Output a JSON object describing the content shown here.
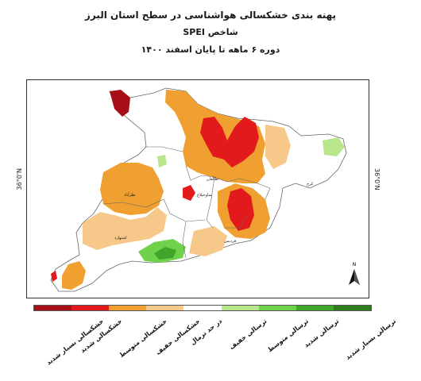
{
  "title": {
    "line1": "پهنه بندی خشکسالی هواشناسی در سطح استان البرز",
    "line2": "شاخص SPEI",
    "line3": "دوره ۶ ماهه تا پایان اسفند ۱۴۰۰"
  },
  "latitude_label": "36°0'N",
  "north_arrow": "N",
  "map_labels": {
    "city1": "طالقان",
    "city2": "ساوجبلاغ",
    "city3": "کرج",
    "city4": "نظرآباد",
    "city5": "اشتهارد",
    "city6": "فردیس"
  },
  "legend": [
    {
      "label": "خشکسالی بسیار شدید",
      "color": "#a50f15"
    },
    {
      "label": "خشکسالی شدید",
      "color": "#e31a1c"
    },
    {
      "label": "خشکسالی متوسط",
      "color": "#f0a030"
    },
    {
      "label": "خشکسالی خفیف",
      "color": "#f6c98a"
    },
    {
      "label": "در حد نرمال",
      "color": "#ffffff"
    },
    {
      "label": "ترسالی خفیف",
      "color": "#b8e68c"
    },
    {
      "label": "ترسالی متوسط",
      "color": "#6fd24a"
    },
    {
      "label": "ترسالی شدید",
      "color": "#3fa62a"
    },
    {
      "label": "ترسالی بسیار شدید",
      "color": "#2f7d1e"
    }
  ]
}
